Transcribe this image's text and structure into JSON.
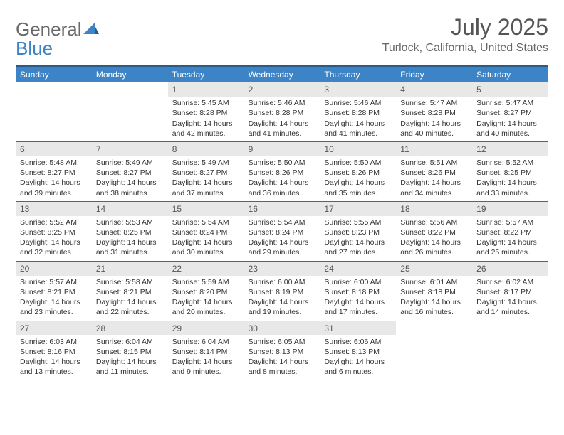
{
  "logo": {
    "general": "General",
    "blue": "Blue"
  },
  "title": "July 2025",
  "location": "Turlock, California, United States",
  "columns": [
    "Sunday",
    "Monday",
    "Tuesday",
    "Wednesday",
    "Thursday",
    "Friday",
    "Saturday"
  ],
  "colors": {
    "header_bg": "#3d84c7",
    "header_border_top": "#2a5a85",
    "row_border": "#3d6a94",
    "num_bg": "#e8e8e8",
    "text": "#333333",
    "title_text": "#555555",
    "location_text": "#666666",
    "logo_general": "#6a6a6a",
    "logo_blue": "#3d84c7"
  },
  "weeks": [
    [
      null,
      null,
      {
        "n": "1",
        "sunrise": "Sunrise: 5:45 AM",
        "sunset": "Sunset: 8:28 PM",
        "daylight": "Daylight: 14 hours and 42 minutes."
      },
      {
        "n": "2",
        "sunrise": "Sunrise: 5:46 AM",
        "sunset": "Sunset: 8:28 PM",
        "daylight": "Daylight: 14 hours and 41 minutes."
      },
      {
        "n": "3",
        "sunrise": "Sunrise: 5:46 AM",
        "sunset": "Sunset: 8:28 PM",
        "daylight": "Daylight: 14 hours and 41 minutes."
      },
      {
        "n": "4",
        "sunrise": "Sunrise: 5:47 AM",
        "sunset": "Sunset: 8:28 PM",
        "daylight": "Daylight: 14 hours and 40 minutes."
      },
      {
        "n": "5",
        "sunrise": "Sunrise: 5:47 AM",
        "sunset": "Sunset: 8:27 PM",
        "daylight": "Daylight: 14 hours and 40 minutes."
      }
    ],
    [
      {
        "n": "6",
        "sunrise": "Sunrise: 5:48 AM",
        "sunset": "Sunset: 8:27 PM",
        "daylight": "Daylight: 14 hours and 39 minutes."
      },
      {
        "n": "7",
        "sunrise": "Sunrise: 5:49 AM",
        "sunset": "Sunset: 8:27 PM",
        "daylight": "Daylight: 14 hours and 38 minutes."
      },
      {
        "n": "8",
        "sunrise": "Sunrise: 5:49 AM",
        "sunset": "Sunset: 8:27 PM",
        "daylight": "Daylight: 14 hours and 37 minutes."
      },
      {
        "n": "9",
        "sunrise": "Sunrise: 5:50 AM",
        "sunset": "Sunset: 8:26 PM",
        "daylight": "Daylight: 14 hours and 36 minutes."
      },
      {
        "n": "10",
        "sunrise": "Sunrise: 5:50 AM",
        "sunset": "Sunset: 8:26 PM",
        "daylight": "Daylight: 14 hours and 35 minutes."
      },
      {
        "n": "11",
        "sunrise": "Sunrise: 5:51 AM",
        "sunset": "Sunset: 8:26 PM",
        "daylight": "Daylight: 14 hours and 34 minutes."
      },
      {
        "n": "12",
        "sunrise": "Sunrise: 5:52 AM",
        "sunset": "Sunset: 8:25 PM",
        "daylight": "Daylight: 14 hours and 33 minutes."
      }
    ],
    [
      {
        "n": "13",
        "sunrise": "Sunrise: 5:52 AM",
        "sunset": "Sunset: 8:25 PM",
        "daylight": "Daylight: 14 hours and 32 minutes."
      },
      {
        "n": "14",
        "sunrise": "Sunrise: 5:53 AM",
        "sunset": "Sunset: 8:25 PM",
        "daylight": "Daylight: 14 hours and 31 minutes."
      },
      {
        "n": "15",
        "sunrise": "Sunrise: 5:54 AM",
        "sunset": "Sunset: 8:24 PM",
        "daylight": "Daylight: 14 hours and 30 minutes."
      },
      {
        "n": "16",
        "sunrise": "Sunrise: 5:54 AM",
        "sunset": "Sunset: 8:24 PM",
        "daylight": "Daylight: 14 hours and 29 minutes."
      },
      {
        "n": "17",
        "sunrise": "Sunrise: 5:55 AM",
        "sunset": "Sunset: 8:23 PM",
        "daylight": "Daylight: 14 hours and 27 minutes."
      },
      {
        "n": "18",
        "sunrise": "Sunrise: 5:56 AM",
        "sunset": "Sunset: 8:22 PM",
        "daylight": "Daylight: 14 hours and 26 minutes."
      },
      {
        "n": "19",
        "sunrise": "Sunrise: 5:57 AM",
        "sunset": "Sunset: 8:22 PM",
        "daylight": "Daylight: 14 hours and 25 minutes."
      }
    ],
    [
      {
        "n": "20",
        "sunrise": "Sunrise: 5:57 AM",
        "sunset": "Sunset: 8:21 PM",
        "daylight": "Daylight: 14 hours and 23 minutes."
      },
      {
        "n": "21",
        "sunrise": "Sunrise: 5:58 AM",
        "sunset": "Sunset: 8:21 PM",
        "daylight": "Daylight: 14 hours and 22 minutes."
      },
      {
        "n": "22",
        "sunrise": "Sunrise: 5:59 AM",
        "sunset": "Sunset: 8:20 PM",
        "daylight": "Daylight: 14 hours and 20 minutes."
      },
      {
        "n": "23",
        "sunrise": "Sunrise: 6:00 AM",
        "sunset": "Sunset: 8:19 PM",
        "daylight": "Daylight: 14 hours and 19 minutes."
      },
      {
        "n": "24",
        "sunrise": "Sunrise: 6:00 AM",
        "sunset": "Sunset: 8:18 PM",
        "daylight": "Daylight: 14 hours and 17 minutes."
      },
      {
        "n": "25",
        "sunrise": "Sunrise: 6:01 AM",
        "sunset": "Sunset: 8:18 PM",
        "daylight": "Daylight: 14 hours and 16 minutes."
      },
      {
        "n": "26",
        "sunrise": "Sunrise: 6:02 AM",
        "sunset": "Sunset: 8:17 PM",
        "daylight": "Daylight: 14 hours and 14 minutes."
      }
    ],
    [
      {
        "n": "27",
        "sunrise": "Sunrise: 6:03 AM",
        "sunset": "Sunset: 8:16 PM",
        "daylight": "Daylight: 14 hours and 13 minutes."
      },
      {
        "n": "28",
        "sunrise": "Sunrise: 6:04 AM",
        "sunset": "Sunset: 8:15 PM",
        "daylight": "Daylight: 14 hours and 11 minutes."
      },
      {
        "n": "29",
        "sunrise": "Sunrise: 6:04 AM",
        "sunset": "Sunset: 8:14 PM",
        "daylight": "Daylight: 14 hours and 9 minutes."
      },
      {
        "n": "30",
        "sunrise": "Sunrise: 6:05 AM",
        "sunset": "Sunset: 8:13 PM",
        "daylight": "Daylight: 14 hours and 8 minutes."
      },
      {
        "n": "31",
        "sunrise": "Sunrise: 6:06 AM",
        "sunset": "Sunset: 8:13 PM",
        "daylight": "Daylight: 14 hours and 6 minutes."
      },
      null,
      null
    ]
  ]
}
